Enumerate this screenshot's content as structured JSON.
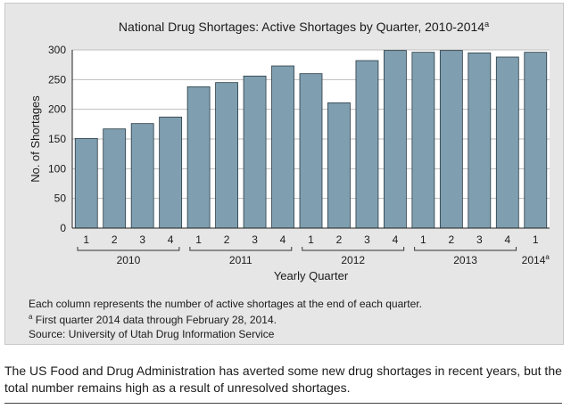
{
  "chart_data": {
    "type": "bar",
    "title": "National Drug Shortages: Active Shortages by Quarter, 2010-2014",
    "title_superscript": "a",
    "xlabel": "Yearly Quarter",
    "ylabel": "No. of Shortages",
    "ylim": [
      0,
      300
    ],
    "yticks": [
      0,
      50,
      100,
      150,
      200,
      250,
      300
    ],
    "grid": true,
    "bar_color": "#7f9fb0",
    "categories": [
      "2010 Q1",
      "2010 Q2",
      "2010 Q3",
      "2010 Q4",
      "2011 Q1",
      "2011 Q2",
      "2011 Q3",
      "2011 Q4",
      "2012 Q1",
      "2012 Q2",
      "2012 Q3",
      "2012 Q4",
      "2013 Q1",
      "2013 Q2",
      "2013 Q3",
      "2013 Q4",
      "2014 Q1"
    ],
    "quarter_labels": [
      "1",
      "2",
      "3",
      "4",
      "1",
      "2",
      "3",
      "4",
      "1",
      "2",
      "3",
      "4",
      "1",
      "2",
      "3",
      "4",
      "1"
    ],
    "values": [
      151,
      167,
      176,
      187,
      238,
      245,
      256,
      273,
      260,
      211,
      282,
      299,
      296,
      299,
      295,
      288,
      296
    ],
    "year_groups": [
      {
        "label": "2010",
        "start": 0,
        "end": 3
      },
      {
        "label": "2011",
        "start": 4,
        "end": 7
      },
      {
        "label": "2012",
        "start": 8,
        "end": 11
      },
      {
        "label": "2013",
        "start": 12,
        "end": 15
      },
      {
        "label": "2014",
        "sup": "a",
        "start": 16,
        "end": 16
      }
    ]
  },
  "notes": {
    "line1": "Each column represents the number of active shortages at the end of each quarter.",
    "line2_marker": "a",
    "line2": " First quarter 2014 data through February 28, 2014.",
    "line3": "Source: University of Utah Drug Information Service"
  },
  "caption": "The US Food and Drug Administration has averted some new drug shortages in recent years, but the total number remains high as a result of unresolved shortages."
}
